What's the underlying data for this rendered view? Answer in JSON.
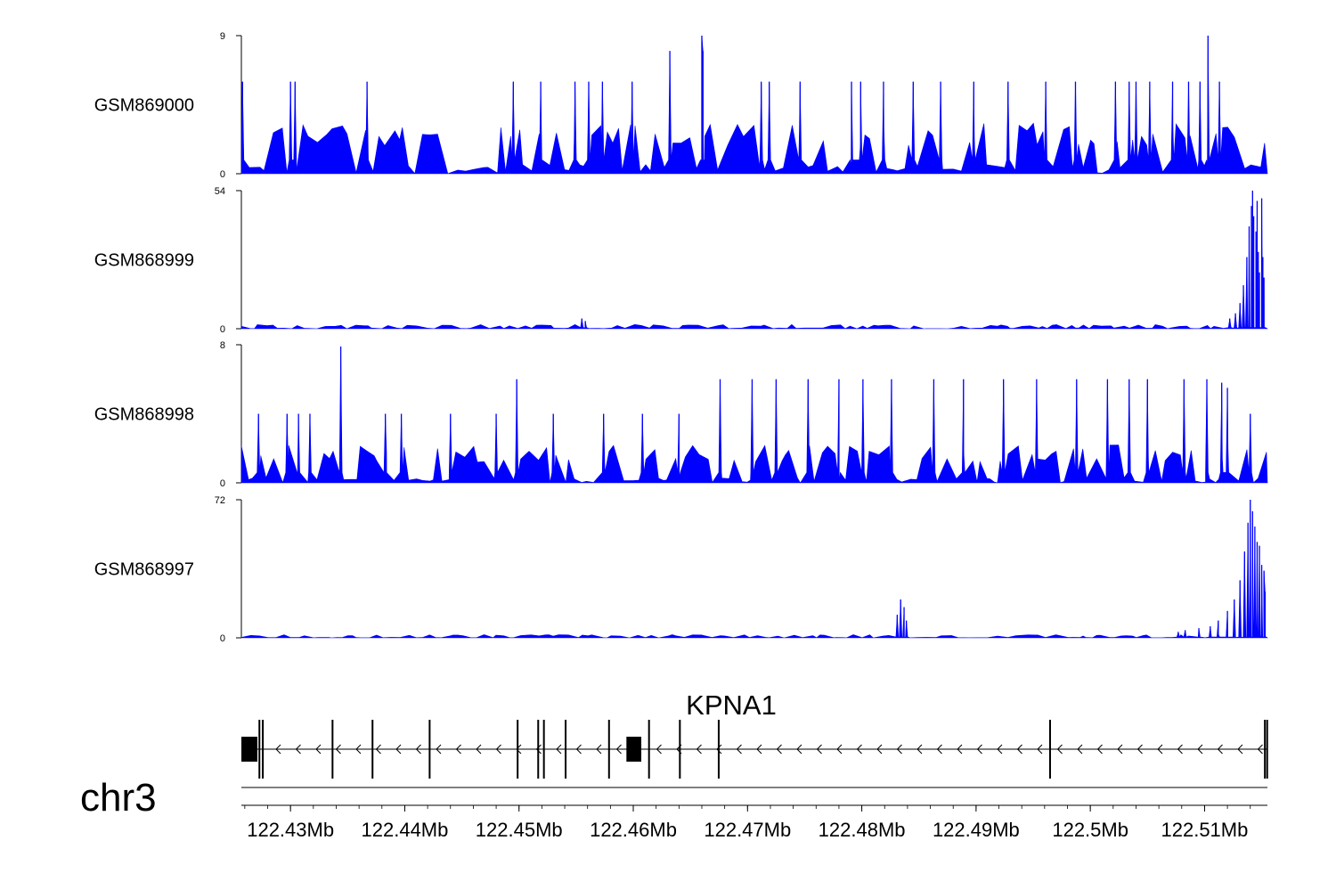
{
  "chart_data": {
    "type": "area",
    "chromosome": "chr3",
    "gene": {
      "name": "KPNA1",
      "strand": "-",
      "exons_mb": [
        [
          122.4257,
          122.4271
        ],
        [
          122.4272,
          122.4273
        ],
        [
          122.4275,
          122.4276
        ],
        [
          122.4336,
          122.4337
        ],
        [
          122.4371,
          122.4372
        ],
        [
          122.4421,
          122.4422
        ],
        [
          122.4498,
          122.4499
        ],
        [
          122.4516,
          122.4517
        ],
        [
          122.4521,
          122.4522
        ],
        [
          122.454,
          122.4541
        ],
        [
          122.4578,
          122.4579
        ],
        [
          122.4594,
          122.4607
        ],
        [
          122.4613,
          122.4614
        ],
        [
          122.464,
          122.4641
        ],
        [
          122.4674,
          122.4675
        ],
        [
          122.4964,
          122.4965
        ],
        [
          122.5152,
          122.5153
        ],
        [
          122.5154,
          122.5155
        ]
      ]
    },
    "region_mb": [
      122.4257,
      122.5155
    ],
    "x_ticks": [
      "122.43Mb",
      "122.44Mb",
      "122.45Mb",
      "122.46Mb",
      "122.47Mb",
      "122.48Mb",
      "122.49Mb",
      "122.5Mb",
      "122.51Mb"
    ],
    "x_tick_values": [
      122.43,
      122.44,
      122.45,
      122.46,
      122.47,
      122.48,
      122.49,
      122.5,
      122.51
    ],
    "tracks": [
      {
        "name": "GSM869000",
        "ylim": [
          0,
          9
        ],
        "y_tick_labels": [
          "0",
          "9"
        ],
        "color": "#0000ff",
        "baseline": 1,
        "background": 3,
        "peaks": [
          [
            122.4258,
            6
          ],
          [
            122.43,
            6
          ],
          [
            122.4304,
            6
          ],
          [
            122.4367,
            6
          ],
          [
            122.4495,
            6
          ],
          [
            122.4519,
            6
          ],
          [
            122.4549,
            6
          ],
          [
            122.4561,
            6
          ],
          [
            122.4573,
            6
          ],
          [
            122.4599,
            6
          ],
          [
            122.4632,
            8
          ],
          [
            122.466,
            9
          ],
          [
            122.4661,
            8
          ],
          [
            122.4712,
            6
          ],
          [
            122.4719,
            6
          ],
          [
            122.4746,
            6
          ],
          [
            122.4791,
            6
          ],
          [
            122.4799,
            6
          ],
          [
            122.4819,
            6
          ],
          [
            122.4845,
            6
          ],
          [
            122.4869,
            6
          ],
          [
            122.4898,
            6
          ],
          [
            122.4928,
            6
          ],
          [
            122.4961,
            6
          ],
          [
            122.4987,
            6
          ],
          [
            122.5022,
            6
          ],
          [
            122.5034,
            6
          ],
          [
            122.504,
            6
          ],
          [
            122.5052,
            6
          ],
          [
            122.5072,
            6
          ],
          [
            122.5086,
            6
          ],
          [
            122.5096,
            6
          ],
          [
            122.5103,
            9
          ],
          [
            122.5113,
            6
          ]
        ]
      },
      {
        "name": "GSM868999",
        "ylim": [
          0,
          54
        ],
        "y_tick_labels": [
          "0",
          "54"
        ],
        "color": "#0000ff",
        "baseline": 0.5,
        "background": 1.5,
        "peaks": [
          [
            122.4555,
            4
          ],
          [
            122.4558,
            3
          ],
          [
            122.5122,
            4
          ],
          [
            122.5127,
            6
          ],
          [
            122.5131,
            10
          ],
          [
            122.5134,
            17
          ],
          [
            122.5137,
            28
          ],
          [
            122.5139,
            40
          ],
          [
            122.5141,
            48
          ],
          [
            122.5142,
            54
          ],
          [
            122.5143,
            44
          ],
          [
            122.5145,
            38
          ],
          [
            122.5146,
            50
          ],
          [
            122.5147,
            30
          ],
          [
            122.5148,
            22
          ],
          [
            122.515,
            51
          ],
          [
            122.5151,
            28
          ],
          [
            122.5152,
            20
          ]
        ]
      },
      {
        "name": "GSM868998",
        "ylim": [
          0,
          8
        ],
        "y_tick_labels": [
          "0",
          "8"
        ],
        "color": "#0000ff",
        "baseline": 0.5,
        "background": 2,
        "peaks": [
          [
            122.4272,
            4
          ],
          [
            122.4297,
            4
          ],
          [
            122.4307,
            4
          ],
          [
            122.4317,
            4
          ],
          [
            122.4344,
            7.9
          ],
          [
            122.4383,
            4
          ],
          [
            122.4397,
            4
          ],
          [
            122.444,
            4
          ],
          [
            122.448,
            4
          ],
          [
            122.4498,
            6
          ],
          [
            122.453,
            4
          ],
          [
            122.4574,
            4
          ],
          [
            122.4608,
            4
          ],
          [
            122.464,
            4
          ],
          [
            122.4676,
            6
          ],
          [
            122.4704,
            6
          ],
          [
            122.4725,
            6
          ],
          [
            122.4753,
            6
          ],
          [
            122.478,
            6
          ],
          [
            122.4801,
            6
          ],
          [
            122.4826,
            6
          ],
          [
            122.4863,
            6
          ],
          [
            122.4889,
            6
          ],
          [
            122.4924,
            6
          ],
          [
            122.4953,
            6
          ],
          [
            122.4988,
            6
          ],
          [
            122.5015,
            6
          ],
          [
            122.5034,
            6
          ],
          [
            122.505,
            6
          ],
          [
            122.5082,
            6
          ],
          [
            122.5102,
            6
          ],
          [
            122.5115,
            5.8
          ],
          [
            122.512,
            5.5
          ],
          [
            122.514,
            4
          ]
        ]
      },
      {
        "name": "GSM868997",
        "ylim": [
          0,
          72
        ],
        "y_tick_labels": [
          "0",
          "72"
        ],
        "color": "#0000ff",
        "baseline": 0.5,
        "background": 1.5,
        "peaks": [
          [
            122.4831,
            12
          ],
          [
            122.4834,
            20
          ],
          [
            122.4837,
            16
          ],
          [
            122.4839,
            9
          ],
          [
            122.5077,
            3
          ],
          [
            122.5083,
            4
          ],
          [
            122.5095,
            5
          ],
          [
            122.5105,
            6
          ],
          [
            122.5112,
            9
          ],
          [
            122.512,
            14
          ],
          [
            122.5126,
            20
          ],
          [
            122.5131,
            30
          ],
          [
            122.5135,
            45
          ],
          [
            122.5138,
            60
          ],
          [
            122.514,
            72
          ],
          [
            122.5142,
            66
          ],
          [
            122.5144,
            58
          ],
          [
            122.5146,
            50
          ],
          [
            122.5148,
            48
          ],
          [
            122.515,
            38
          ],
          [
            122.5152,
            35
          ],
          [
            122.5153,
            24
          ]
        ]
      }
    ]
  }
}
